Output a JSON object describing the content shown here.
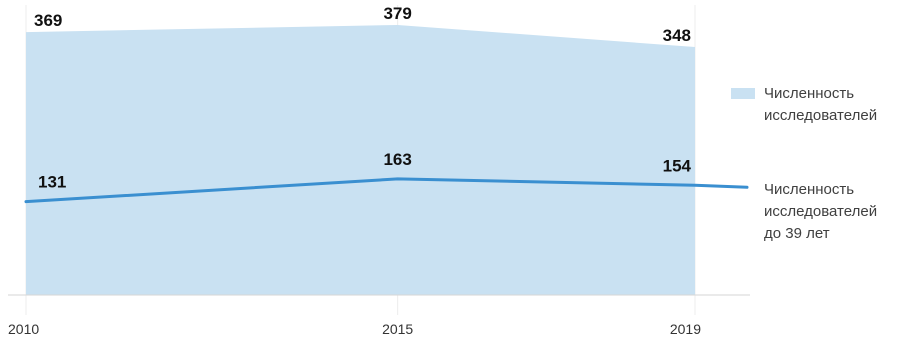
{
  "chart_data": {
    "type": "area+line",
    "title": "",
    "xlabel": "",
    "ylabel": "",
    "categories": [
      "2010",
      "2015",
      "2019"
    ],
    "x": [
      2010,
      2015,
      2019
    ],
    "ylim": [
      0,
      400
    ],
    "grid": true,
    "legend_position": "right",
    "series": [
      {
        "name": "Численность исследователей",
        "name_lines": [
          "Численность",
          "исследователей"
        ],
        "kind": "area",
        "values": [
          369,
          379,
          348
        ],
        "labels": [
          "369",
          "379",
          "348"
        ],
        "color": "#c9e1f2"
      },
      {
        "name": "Численность исследователей до 39 лет",
        "name_lines": [
          "Численность",
          "исследователей",
          "до 39 лет"
        ],
        "kind": "line",
        "values": [
          131,
          163,
          154
        ],
        "labels": [
          "131",
          "163",
          "154"
        ],
        "color": "#3a8fd0"
      }
    ]
  }
}
